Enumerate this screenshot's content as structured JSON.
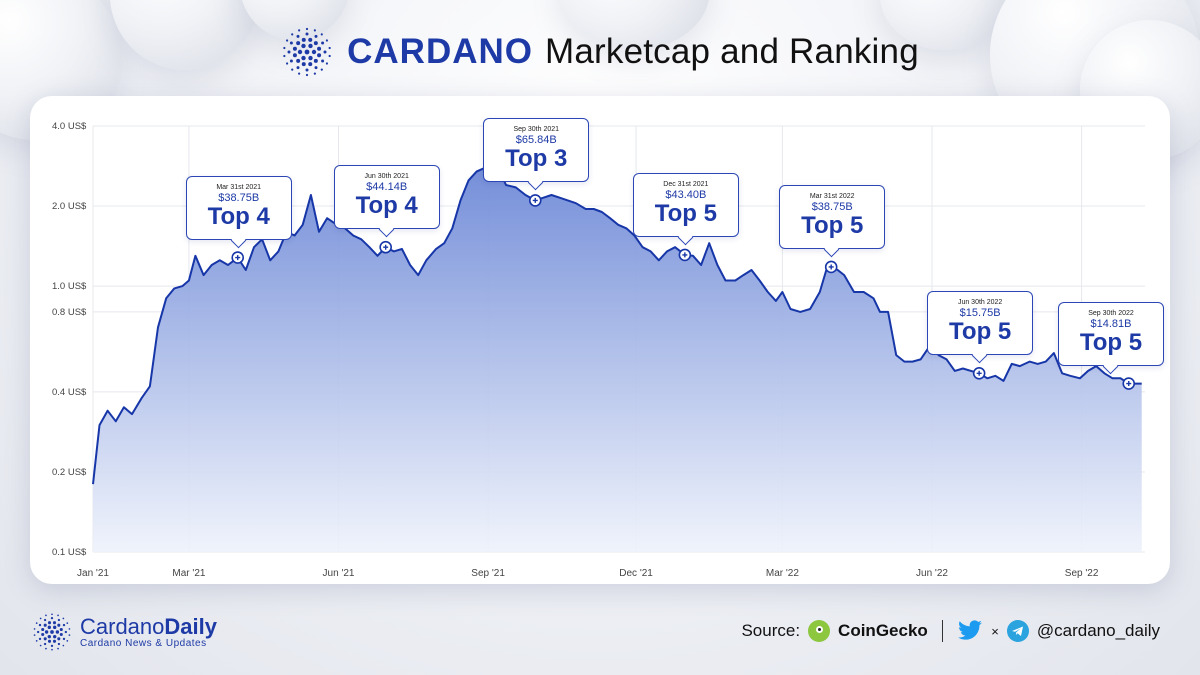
{
  "header": {
    "brand": "CARDANO",
    "subtitle": "Marketcap and Ranking",
    "logo_icon": "cardano-logo-icon"
  },
  "chart_data": {
    "type": "area",
    "title": "CARDANO Marketcap and Ranking",
    "y_scale": "log",
    "y_ticks": [
      {
        "value": 0.1,
        "label": "0.1 US$"
      },
      {
        "value": 0.2,
        "label": "0.2 US$"
      },
      {
        "value": 0.4,
        "label": "0.4 US$"
      },
      {
        "value": 0.8,
        "label": "0.8 US$"
      },
      {
        "value": 1.0,
        "label": "1.0 US$"
      },
      {
        "value": 2.0,
        "label": "2.0 US$"
      },
      {
        "value": 4.0,
        "label": "4.0 US$"
      }
    ],
    "ylim": [
      0.1,
      4.0
    ],
    "x_ticks": [
      {
        "date": "2021-01-01",
        "label": "Jan '21"
      },
      {
        "date": "2021-03-01",
        "label": "Mar '21"
      },
      {
        "date": "2021-06-01",
        "label": "Jun '21"
      },
      {
        "date": "2021-09-01",
        "label": "Sep '21"
      },
      {
        "date": "2021-12-01",
        "label": "Dec '21"
      },
      {
        "date": "2022-03-01",
        "label": "Mar '22"
      },
      {
        "date": "2022-06-01",
        "label": "Jun '22"
      },
      {
        "date": "2022-09-01",
        "label": "Sep '22"
      }
    ],
    "xlim": [
      "2021-01-01",
      "2022-10-10"
    ],
    "grid": true,
    "colors": {
      "line": "#1736a8",
      "fill_top": "#6a86d6",
      "fill_bottom": "#eef2fb"
    },
    "series": [
      {
        "points": [
          [
            "2021-01-01",
            0.18
          ],
          [
            "2021-01-05",
            0.3
          ],
          [
            "2021-01-10",
            0.34
          ],
          [
            "2021-01-15",
            0.31
          ],
          [
            "2021-01-20",
            0.35
          ],
          [
            "2021-01-25",
            0.33
          ],
          [
            "2021-01-31",
            0.38
          ],
          [
            "2021-02-05",
            0.42
          ],
          [
            "2021-02-10",
            0.7
          ],
          [
            "2021-02-15",
            0.9
          ],
          [
            "2021-02-20",
            0.98
          ],
          [
            "2021-02-25",
            1.0
          ],
          [
            "2021-03-01",
            1.05
          ],
          [
            "2021-03-05",
            1.3
          ],
          [
            "2021-03-10",
            1.1
          ],
          [
            "2021-03-15",
            1.2
          ],
          [
            "2021-03-20",
            1.25
          ],
          [
            "2021-03-25",
            1.2
          ],
          [
            "2021-03-31",
            1.28
          ],
          [
            "2021-04-05",
            1.15
          ],
          [
            "2021-04-10",
            1.4
          ],
          [
            "2021-04-15",
            1.5
          ],
          [
            "2021-04-20",
            1.25
          ],
          [
            "2021-04-25",
            1.35
          ],
          [
            "2021-04-30",
            1.6
          ],
          [
            "2021-05-05",
            1.55
          ],
          [
            "2021-05-10",
            1.7
          ],
          [
            "2021-05-15",
            2.2
          ],
          [
            "2021-05-20",
            1.6
          ],
          [
            "2021-05-25",
            1.8
          ],
          [
            "2021-05-31",
            1.7
          ],
          [
            "2021-06-05",
            1.65
          ],
          [
            "2021-06-10",
            1.55
          ],
          [
            "2021-06-15",
            1.5
          ],
          [
            "2021-06-20",
            1.4
          ],
          [
            "2021-06-25",
            1.3
          ],
          [
            "2021-06-30",
            1.4
          ],
          [
            "2021-07-05",
            1.35
          ],
          [
            "2021-07-10",
            1.38
          ],
          [
            "2021-07-15",
            1.2
          ],
          [
            "2021-07-20",
            1.1
          ],
          [
            "2021-07-25",
            1.25
          ],
          [
            "2021-07-31",
            1.38
          ],
          [
            "2021-08-05",
            1.45
          ],
          [
            "2021-08-10",
            1.65
          ],
          [
            "2021-08-15",
            2.1
          ],
          [
            "2021-08-20",
            2.5
          ],
          [
            "2021-08-25",
            2.7
          ],
          [
            "2021-08-31",
            2.8
          ],
          [
            "2021-09-03",
            3.0
          ],
          [
            "2021-09-07",
            2.8
          ],
          [
            "2021-09-12",
            2.4
          ],
          [
            "2021-09-18",
            2.35
          ],
          [
            "2021-09-24",
            2.2
          ],
          [
            "2021-09-30",
            2.1
          ],
          [
            "2021-10-05",
            2.15
          ],
          [
            "2021-10-10",
            2.2
          ],
          [
            "2021-10-15",
            2.15
          ],
          [
            "2021-10-20",
            2.1
          ],
          [
            "2021-10-25",
            2.05
          ],
          [
            "2021-10-31",
            1.95
          ],
          [
            "2021-11-05",
            1.95
          ],
          [
            "2021-11-10",
            1.9
          ],
          [
            "2021-11-15",
            1.8
          ],
          [
            "2021-11-20",
            1.7
          ],
          [
            "2021-11-25",
            1.65
          ],
          [
            "2021-11-30",
            1.55
          ],
          [
            "2021-12-05",
            1.4
          ],
          [
            "2021-12-10",
            1.35
          ],
          [
            "2021-12-15",
            1.25
          ],
          [
            "2021-12-20",
            1.35
          ],
          [
            "2021-12-25",
            1.4
          ],
          [
            "2021-12-31",
            1.31
          ],
          [
            "2022-01-05",
            1.3
          ],
          [
            "2022-01-10",
            1.2
          ],
          [
            "2022-01-15",
            1.45
          ],
          [
            "2022-01-20",
            1.2
          ],
          [
            "2022-01-25",
            1.05
          ],
          [
            "2022-01-31",
            1.05
          ],
          [
            "2022-02-05",
            1.1
          ],
          [
            "2022-02-10",
            1.15
          ],
          [
            "2022-02-15",
            1.05
          ],
          [
            "2022-02-20",
            0.95
          ],
          [
            "2022-02-25",
            0.88
          ],
          [
            "2022-03-01",
            0.95
          ],
          [
            "2022-03-06",
            0.82
          ],
          [
            "2022-03-12",
            0.8
          ],
          [
            "2022-03-18",
            0.82
          ],
          [
            "2022-03-24",
            0.95
          ],
          [
            "2022-03-28",
            1.15
          ],
          [
            "2022-03-31",
            1.18
          ],
          [
            "2022-04-04",
            1.15
          ],
          [
            "2022-04-08",
            1.1
          ],
          [
            "2022-04-14",
            0.95
          ],
          [
            "2022-04-20",
            0.95
          ],
          [
            "2022-04-26",
            0.9
          ],
          [
            "2022-04-30",
            0.8
          ],
          [
            "2022-05-05",
            0.8
          ],
          [
            "2022-05-10",
            0.55
          ],
          [
            "2022-05-15",
            0.52
          ],
          [
            "2022-05-20",
            0.52
          ],
          [
            "2022-05-25",
            0.53
          ],
          [
            "2022-05-31",
            0.6
          ],
          [
            "2022-06-05",
            0.55
          ],
          [
            "2022-06-10",
            0.53
          ],
          [
            "2022-06-15",
            0.48
          ],
          [
            "2022-06-20",
            0.49
          ],
          [
            "2022-06-25",
            0.48
          ],
          [
            "2022-06-30",
            0.47
          ],
          [
            "2022-07-05",
            0.45
          ],
          [
            "2022-07-10",
            0.46
          ],
          [
            "2022-07-15",
            0.44
          ],
          [
            "2022-07-20",
            0.51
          ],
          [
            "2022-07-25",
            0.5
          ],
          [
            "2022-07-31",
            0.52
          ],
          [
            "2022-08-05",
            0.51
          ],
          [
            "2022-08-10",
            0.52
          ],
          [
            "2022-08-15",
            0.56
          ],
          [
            "2022-08-20",
            0.47
          ],
          [
            "2022-08-25",
            0.46
          ],
          [
            "2022-08-31",
            0.45
          ],
          [
            "2022-09-05",
            0.48
          ],
          [
            "2022-09-10",
            0.5
          ],
          [
            "2022-09-15",
            0.47
          ],
          [
            "2022-09-20",
            0.45
          ],
          [
            "2022-09-25",
            0.45
          ],
          [
            "2022-09-30",
            0.43
          ],
          [
            "2022-10-08",
            0.43
          ]
        ]
      }
    ],
    "annotations": [
      {
        "date": "2021-03-31",
        "value": 1.28,
        "label_date": "Mar 31st 2021",
        "marketcap": "$38.75B",
        "rank": "Top 4"
      },
      {
        "date": "2021-06-30",
        "value": 1.4,
        "label_date": "Jun 30th 2021",
        "marketcap": "$44.14B",
        "rank": "Top 4"
      },
      {
        "date": "2021-09-30",
        "value": 2.1,
        "label_date": "Sep 30th 2021",
        "marketcap": "$65.84B",
        "rank": "Top 3"
      },
      {
        "date": "2021-12-31",
        "value": 1.31,
        "label_date": "Dec 31st 2021",
        "marketcap": "$43.40B",
        "rank": "Top 5"
      },
      {
        "date": "2022-03-31",
        "value": 1.18,
        "label_date": "Mar 31st 2022",
        "marketcap": "$38.75B",
        "rank": "Top 5"
      },
      {
        "date": "2022-06-30",
        "value": 0.47,
        "label_date": "Jun 30th 2022",
        "marketcap": "$15.75B",
        "rank": "Top 5"
      },
      {
        "date": "2022-09-30",
        "value": 0.43,
        "label_date": "Sep 30th 2022",
        "marketcap": "$14.81B",
        "rank": "Top 5"
      }
    ]
  },
  "footer": {
    "name_light": "Cardano",
    "name_bold": "Daily",
    "tagline": "Cardano News & Updates",
    "source_label": "Source:",
    "source_name": "CoinGecko",
    "times": "×",
    "handle": "@cardano_daily",
    "icons": [
      "coingecko-icon",
      "twitter-icon",
      "telegram-icon"
    ]
  }
}
